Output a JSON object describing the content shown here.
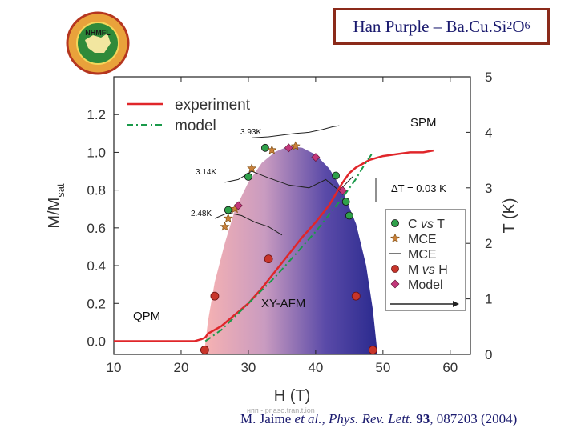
{
  "slide": {
    "title_main": "Han Purple – Ba",
    "title_cu": "Cu",
    "title_si": "Si",
    "title_si_sub": "2",
    "title_o": "O",
    "title_o_sub": "6",
    "logo_text": "NHMFL",
    "logo_ring_text": "FLORIDA STATE UNIVERSITY",
    "watermark": "нпп - pr.aso.tran.t.ion",
    "citation": {
      "authors": "M. Jaime ",
      "etal": "et al., Phys. Rev. Lett.",
      "volume": " 93",
      "rest": ", 087203 (2004)"
    }
  },
  "chart_data": {
    "type": "line",
    "title": "",
    "xlabel": "H (T)",
    "ylabel_left": "M/M",
    "ylabel_left_sub": "sat",
    "ylabel_right": "T (K)",
    "xlim": [
      10,
      63
    ],
    "ylim_left": [
      -0.07,
      1.4
    ],
    "ylim_right": [
      0,
      5.0
    ],
    "x_ticks": [
      10,
      20,
      30,
      40,
      50,
      60
    ],
    "y_left_ticks": [
      "0.0",
      "0.2",
      "0.4",
      "0.6",
      "0.8",
      "1.0",
      "1.2"
    ],
    "y_left_tick_values": [
      0.0,
      0.2,
      0.4,
      0.6,
      0.8,
      1.0,
      1.2
    ],
    "y_right_ticks": [
      "0",
      "1",
      "2",
      "3",
      "4",
      "5"
    ],
    "y_right_tick_values": [
      0,
      1,
      2,
      3,
      4,
      5
    ],
    "legend_top": [
      {
        "name": "experiment",
        "color": "#e0262a",
        "style": "solid"
      },
      {
        "name": "model",
        "color": "#1a9a4a",
        "style": "dashdot"
      }
    ],
    "legend_right": [
      {
        "name": "C vs T",
        "marker": "circle-green"
      },
      {
        "name": "MCE",
        "marker": "star"
      },
      {
        "name": "MCE",
        "marker": "line"
      },
      {
        "name": "M vs H",
        "marker": "circle-red"
      },
      {
        "name": "Model",
        "marker": "diamond"
      }
    ],
    "annotations": {
      "spm": "SPM",
      "qpm": "QPM",
      "xyafm": "XY-AFM",
      "delta_t": "ΔT = 0.03 K",
      "t393": "3.93K",
      "t314": "3.14K",
      "t248": "2.48K"
    },
    "phase_dome_TK": [
      [
        23.4,
        0
      ],
      [
        24.0,
        0.6
      ],
      [
        25.0,
        1.3
      ],
      [
        26.5,
        2.0
      ],
      [
        28.0,
        2.6
      ],
      [
        30.0,
        3.1
      ],
      [
        32.0,
        3.45
      ],
      [
        34.0,
        3.65
      ],
      [
        36.0,
        3.75
      ],
      [
        38.0,
        3.72
      ],
      [
        40.0,
        3.6
      ],
      [
        42.0,
        3.35
      ],
      [
        44.0,
        2.95
      ],
      [
        46.0,
        2.35
      ],
      [
        47.5,
        1.6
      ],
      [
        48.5,
        0.8
      ],
      [
        49.2,
        0
      ]
    ],
    "series": [
      {
        "name": "experiment",
        "color": "#e0262a",
        "x": [
          10,
          14,
          18,
          20,
          22,
          23,
          23.6,
          24,
          25,
          26,
          27,
          28,
          30,
          32,
          34,
          36,
          38,
          40,
          42,
          43,
          44,
          45,
          46,
          47,
          48,
          50,
          52,
          54,
          56,
          57.5
        ],
        "y": [
          0.0,
          0.0,
          0.0,
          0.0,
          0.0,
          0.01,
          0.02,
          0.04,
          0.06,
          0.08,
          0.11,
          0.14,
          0.2,
          0.28,
          0.37,
          0.46,
          0.55,
          0.63,
          0.72,
          0.78,
          0.84,
          0.89,
          0.92,
          0.94,
          0.96,
          0.98,
          0.99,
          1.0,
          1.0,
          1.01
        ]
      },
      {
        "name": "model",
        "color": "#1a9a4a",
        "x": [
          23.6,
          26,
          28,
          30,
          32,
          34,
          36,
          38,
          40,
          42,
          44,
          46,
          47,
          48.5
        ],
        "y": [
          0.0,
          0.06,
          0.13,
          0.2,
          0.27,
          0.34,
          0.42,
          0.5,
          0.58,
          0.67,
          0.76,
          0.86,
          0.92,
          1.0
        ]
      }
    ],
    "points_c_vs_t": {
      "x": [
        27.0,
        30.0,
        32.5,
        43.0,
        44.5,
        45.0
      ],
      "y_TK": [
        2.6,
        3.2,
        3.72,
        3.22,
        2.75,
        2.5
      ]
    },
    "points_mce_stars": {
      "x": [
        26.5,
        27.0,
        28.0,
        30.5,
        33.5,
        37.0
      ],
      "y_TK": [
        2.3,
        2.45,
        2.62,
        3.35,
        3.68,
        3.75
      ]
    },
    "points_m_vs_h": {
      "x": [
        23.5,
        25.0,
        33.0,
        46.0,
        48.5
      ],
      "y_TK": [
        0.08,
        1.05,
        1.72,
        1.05,
        0.08
      ]
    },
    "points_model_diamonds": {
      "x": [
        36.0,
        40.0,
        44.0,
        28.5
      ],
      "y_TK": [
        3.72,
        3.55,
        2.95,
        2.68
      ]
    },
    "mce_traces": [
      {
        "label_ref": "t393",
        "x": [
          30.5,
          33.0,
          35.0,
          37.0,
          39.0,
          41.0,
          42.5,
          43.5
        ],
        "y_TK": [
          3.9,
          3.92,
          3.95,
          3.98,
          4.0,
          4.05,
          4.1,
          4.12
        ]
      },
      {
        "label_ref": "t314",
        "x": [
          26.5,
          28.5,
          30.5,
          33.0,
          36.0,
          39.0,
          41.5,
          43.5,
          45.5
        ],
        "y_TK": [
          3.1,
          3.15,
          3.3,
          3.18,
          3.05,
          3.0,
          3.15,
          2.95,
          3.2
        ]
      },
      {
        "label_ref": "t248",
        "x": [
          25.0,
          27.0,
          29.0,
          31.0,
          33.0,
          35.0
        ],
        "y_TK": [
          2.45,
          2.55,
          2.5,
          2.38,
          2.3,
          2.15
        ]
      }
    ]
  }
}
